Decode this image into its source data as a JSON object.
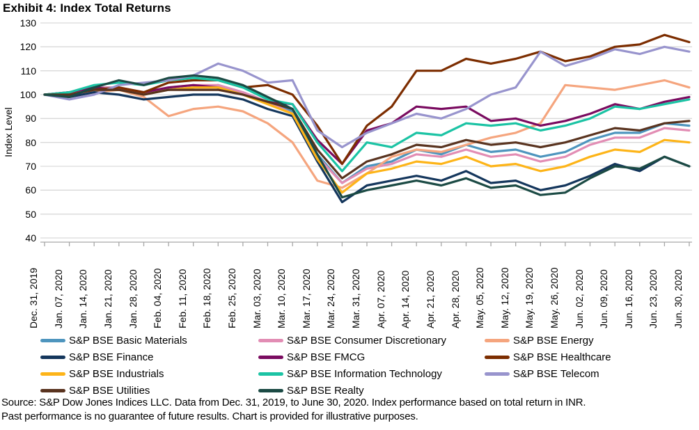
{
  "title": "Exhibit 4: Index Total Returns",
  "source_lines": [
    "Source: S&P Dow Jones Indices LLC. Data from Dec. 31, 2019, to June 30, 2020. Index performance based on total return in INR.",
    "Past performance is no guarantee of future results. Chart is provided for illustrative purposes."
  ],
  "colors": {
    "grid": "#D9D9D9",
    "axis": "#A6A6A6",
    "text": "#000000"
  },
  "chart_data": {
    "type": "line",
    "title": "Exhibit 4: Index Total Returns",
    "xlabel": "",
    "ylabel": "Index Level",
    "ylim": [
      40,
      130
    ],
    "ytick_step": 10,
    "grid": "horizontal-only",
    "legend_position": "bottom",
    "x": [
      "Dec. 31, 2019",
      "Jan. 07, 2020",
      "Jan. 14, 2020",
      "Jan. 21, 2020",
      "Jan. 28, 2020",
      "Feb. 04, 2020",
      "Feb. 11, 2020",
      "Feb. 18, 2020",
      "Feb. 25, 2020",
      "Mar. 03, 2020",
      "Mar. 10, 2020",
      "Mar. 17, 2020",
      "Mar. 24, 2020",
      "Mar. 31, 2020",
      "Apr. 07, 2020",
      "Apr. 14, 2020",
      "Apr. 21, 2020",
      "Apr. 28, 2020",
      "May. 05, 2020",
      "May. 12, 2020",
      "May. 19, 2020",
      "May. 26, 2020",
      "Jun. 02, 2020",
      "Jun. 09, 2020",
      "Jun. 16, 2020",
      "Jun. 23, 2020",
      "Jun. 30, 2020"
    ],
    "series": [
      {
        "name": "S&P BSE Basic Materials",
        "color": "#4E95BE",
        "values": [
          100,
          101,
          103,
          103,
          100,
          102,
          103,
          104,
          101,
          97,
          93,
          75,
          63,
          70,
          72,
          77,
          75,
          79,
          76,
          77,
          74,
          76,
          81,
          84,
          84,
          88,
          87
        ]
      },
      {
        "name": "S&P BSE Consumer Discretionary",
        "color": "#E28DB4",
        "values": [
          100,
          101,
          103,
          103,
          101,
          103,
          104,
          104,
          101,
          97,
          92,
          74,
          63,
          69,
          71,
          75,
          74,
          77,
          74,
          75,
          72,
          74,
          79,
          82,
          82,
          86,
          85
        ]
      },
      {
        "name": "S&P BSE Energy",
        "color": "#F5A57E",
        "values": [
          100,
          99,
          101,
          102,
          99,
          91,
          94,
          95,
          93,
          88,
          80,
          64,
          61,
          67,
          74,
          77,
          76,
          79,
          82,
          84,
          88,
          104,
          103,
          102,
          104,
          106,
          103
        ]
      },
      {
        "name": "S&P BSE Finance",
        "color": "#14365C",
        "values": [
          100,
          99,
          101,
          100,
          98,
          99,
          100,
          100,
          98,
          94,
          91,
          72,
          55,
          62,
          64,
          66,
          64,
          68,
          63,
          64,
          60,
          62,
          66,
          71,
          68,
          74,
          70
        ]
      },
      {
        "name": "S&P BSE FMCG",
        "color": "#7A0B60",
        "values": [
          100,
          101,
          103,
          102,
          101,
          103,
          104,
          103,
          100,
          97,
          96,
          81,
          71,
          85,
          88,
          95,
          94,
          95,
          89,
          90,
          87,
          89,
          92,
          96,
          94,
          97,
          99
        ]
      },
      {
        "name": "S&P BSE Healthcare",
        "color": "#7C2D00",
        "values": [
          100,
          100,
          102,
          103,
          101,
          105,
          106,
          106,
          103,
          104,
          100,
          87,
          71,
          87,
          95,
          110,
          110,
          115,
          113,
          115,
          118,
          114,
          116,
          120,
          121,
          125,
          122
        ]
      },
      {
        "name": "S&P BSE Industrials",
        "color": "#FDB418",
        "values": [
          100,
          100,
          102,
          102,
          100,
          102,
          103,
          103,
          100,
          96,
          92,
          73,
          59,
          67,
          69,
          72,
          71,
          74,
          70,
          71,
          68,
          70,
          74,
          77,
          76,
          81,
          80
        ]
      },
      {
        "name": "S&P BSE Information Technology",
        "color": "#1BC3A4",
        "values": [
          100,
          101,
          104,
          105,
          104,
          106,
          107,
          106,
          103,
          98,
          96,
          80,
          68,
          80,
          78,
          84,
          83,
          88,
          87,
          88,
          85,
          87,
          90,
          95,
          94,
          96,
          98
        ]
      },
      {
        "name": "S&P BSE Telecom",
        "color": "#9894CD",
        "values": [
          100,
          98,
          100,
          104,
          105,
          106,
          108,
          113,
          110,
          105,
          106,
          85,
          78,
          84,
          88,
          92,
          90,
          94,
          100,
          103,
          118,
          112,
          115,
          119,
          117,
          120,
          118
        ]
      },
      {
        "name": "S&P BSE Utilities",
        "color": "#59331F",
        "values": [
          100,
          100,
          102,
          102,
          100,
          102,
          102,
          102,
          100,
          97,
          94,
          77,
          65,
          72,
          75,
          79,
          78,
          81,
          79,
          80,
          78,
          80,
          83,
          86,
          85,
          88,
          89
        ]
      },
      {
        "name": "S&P BSE Realty",
        "color": "#1B4A44",
        "values": [
          100,
          99,
          103,
          106,
          104,
          107,
          108,
          107,
          104,
          99,
          94,
          75,
          57,
          60,
          62,
          64,
          62,
          65,
          61,
          62,
          58,
          59,
          65,
          70,
          69,
          74,
          70
        ]
      }
    ]
  }
}
